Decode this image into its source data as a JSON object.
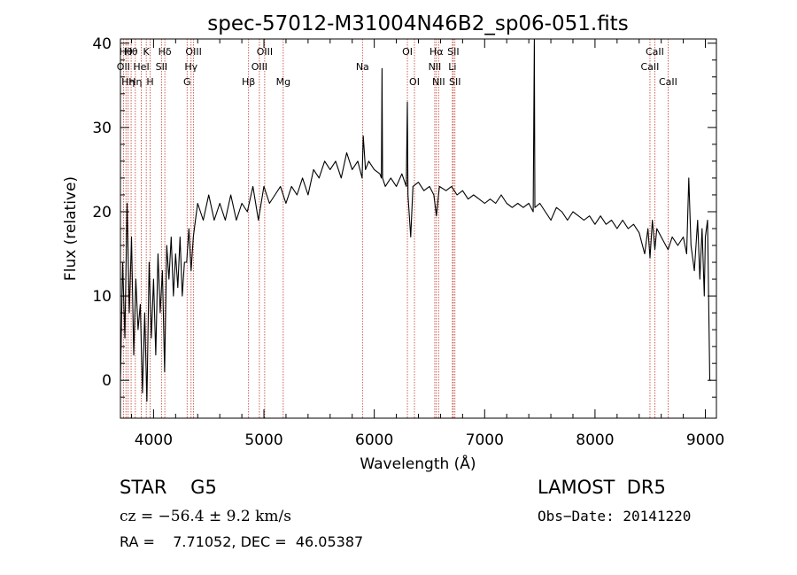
{
  "chart_data": {
    "type": "line",
    "title": "spec-57012-M31004N46B2_sp06-051.fits",
    "xlabel": "Wavelength (Å)",
    "ylabel": "Flux (relative)",
    "xlim": [
      3700,
      9100
    ],
    "ylim": [
      -4.5,
      40.5
    ],
    "xticks": [
      4000,
      5000,
      6000,
      7000,
      8000,
      9000
    ],
    "yticks": [
      0,
      10,
      20,
      30,
      40
    ],
    "grid": false,
    "series": [
      {
        "points": [
          [
            3700,
            0.0
          ],
          [
            3720,
            14.0
          ],
          [
            3740,
            5.0
          ],
          [
            3760,
            21.0
          ],
          [
            3780,
            8.0
          ],
          [
            3800,
            17.0
          ],
          [
            3820,
            3.0
          ],
          [
            3840,
            12.0
          ],
          [
            3860,
            6.0
          ],
          [
            3880,
            9.0
          ],
          [
            3900,
            -1.5
          ],
          [
            3920,
            8.0
          ],
          [
            3940,
            -2.5
          ],
          [
            3960,
            14.0
          ],
          [
            3980,
            5.0
          ],
          [
            4000,
            12.0
          ],
          [
            4020,
            3.0
          ],
          [
            4040,
            15.0
          ],
          [
            4060,
            8.0
          ],
          [
            4080,
            13.0
          ],
          [
            4100,
            1.0
          ],
          [
            4120,
            16.0
          ],
          [
            4140,
            12.0
          ],
          [
            4160,
            17.0
          ],
          [
            4180,
            10.0
          ],
          [
            4200,
            15.0
          ],
          [
            4220,
            11.0
          ],
          [
            4240,
            17.0
          ],
          [
            4260,
            10.0
          ],
          [
            4280,
            14.0
          ],
          [
            4300,
            14.0
          ],
          [
            4320,
            18.0
          ],
          [
            4340,
            13.0
          ],
          [
            4360,
            17.0
          ],
          [
            4380,
            19.0
          ],
          [
            4400,
            21.0
          ],
          [
            4450,
            19.0
          ],
          [
            4500,
            22.0
          ],
          [
            4550,
            19.0
          ],
          [
            4600,
            21.0
          ],
          [
            4650,
            19.0
          ],
          [
            4700,
            22.0
          ],
          [
            4750,
            19.0
          ],
          [
            4800,
            21.0
          ],
          [
            4850,
            20.0
          ],
          [
            4900,
            23.0
          ],
          [
            4950,
            19.0
          ],
          [
            5000,
            23.0
          ],
          [
            5050,
            21.0
          ],
          [
            5100,
            22.0
          ],
          [
            5150,
            23.0
          ],
          [
            5200,
            21.0
          ],
          [
            5250,
            23.0
          ],
          [
            5300,
            22.0
          ],
          [
            5350,
            24.0
          ],
          [
            5400,
            22.0
          ],
          [
            5450,
            25.0
          ],
          [
            5500,
            24.0
          ],
          [
            5550,
            26.0
          ],
          [
            5600,
            25.0
          ],
          [
            5650,
            26.0
          ],
          [
            5700,
            24.0
          ],
          [
            5750,
            27.0
          ],
          [
            5800,
            25.0
          ],
          [
            5850,
            26.0
          ],
          [
            5890,
            24.0
          ],
          [
            5900,
            29.0
          ],
          [
            5920,
            25.0
          ],
          [
            5950,
            26.0
          ],
          [
            6000,
            25.0
          ],
          [
            6050,
            24.5
          ],
          [
            6065,
            24.0
          ],
          [
            6070,
            37.0
          ],
          [
            6075,
            24.0
          ],
          [
            6100,
            23.0
          ],
          [
            6150,
            24.0
          ],
          [
            6200,
            23.0
          ],
          [
            6250,
            24.5
          ],
          [
            6290,
            23.0
          ],
          [
            6300,
            33.0
          ],
          [
            6305,
            22.0
          ],
          [
            6330,
            17.0
          ],
          [
            6350,
            23.0
          ],
          [
            6400,
            23.5
          ],
          [
            6450,
            22.5
          ],
          [
            6500,
            23.0
          ],
          [
            6540,
            22.0
          ],
          [
            6563,
            19.5
          ],
          [
            6590,
            23.0
          ],
          [
            6650,
            22.5
          ],
          [
            6700,
            23.0
          ],
          [
            6750,
            22.0
          ],
          [
            6800,
            22.5
          ],
          [
            6850,
            21.5
          ],
          [
            6900,
            22.0
          ],
          [
            6950,
            21.5
          ],
          [
            7000,
            21.0
          ],
          [
            7050,
            21.5
          ],
          [
            7100,
            21.0
          ],
          [
            7150,
            22.0
          ],
          [
            7200,
            21.0
          ],
          [
            7250,
            20.5
          ],
          [
            7300,
            21.0
          ],
          [
            7350,
            20.5
          ],
          [
            7400,
            21.0
          ],
          [
            7440,
            20.0
          ],
          [
            7450,
            40.5
          ],
          [
            7455,
            20.5
          ],
          [
            7500,
            21.0
          ],
          [
            7550,
            20.0
          ],
          [
            7600,
            19.0
          ],
          [
            7650,
            20.5
          ],
          [
            7700,
            20.0
          ],
          [
            7750,
            19.0
          ],
          [
            7800,
            20.0
          ],
          [
            7850,
            19.5
          ],
          [
            7900,
            19.0
          ],
          [
            7950,
            19.5
          ],
          [
            8000,
            18.5
          ],
          [
            8050,
            19.5
          ],
          [
            8100,
            18.5
          ],
          [
            8150,
            19.0
          ],
          [
            8200,
            18.0
          ],
          [
            8250,
            19.0
          ],
          [
            8300,
            18.0
          ],
          [
            8350,
            18.5
          ],
          [
            8400,
            17.5
          ],
          [
            8450,
            15.0
          ],
          [
            8480,
            18.0
          ],
          [
            8498,
            14.5
          ],
          [
            8520,
            19.0
          ],
          [
            8542,
            15.5
          ],
          [
            8560,
            18.0
          ],
          [
            8600,
            17.0
          ],
          [
            8662,
            15.5
          ],
          [
            8700,
            17.0
          ],
          [
            8750,
            16.0
          ],
          [
            8800,
            17.0
          ],
          [
            8830,
            15.0
          ],
          [
            8850,
            24.0
          ],
          [
            8870,
            16.0
          ],
          [
            8900,
            13.0
          ],
          [
            8930,
            19.0
          ],
          [
            8950,
            12.0
          ],
          [
            8970,
            18.0
          ],
          [
            8990,
            10.0
          ],
          [
            9000,
            17.0
          ],
          [
            9020,
            19.0
          ],
          [
            9040,
            0.0
          ],
          [
            9050,
            0.0
          ]
        ]
      }
    ],
    "lines": [
      {
        "wave": 3727,
        "label": "OII",
        "row": 1
      },
      {
        "wave": 3750,
        "label": "Hθ",
        "row": 0
      },
      {
        "wave": 3770,
        "label": "Hη",
        "row": 2
      },
      {
        "wave": 3797,
        "label": "Hθ",
        "row": 0
      },
      {
        "wave": 3835,
        "label": "Hη",
        "row": 2
      },
      {
        "wave": 3889,
        "label": "HeI",
        "row": 1
      },
      {
        "wave": 3934,
        "label": "K",
        "row": 0
      },
      {
        "wave": 3969,
        "label": "H",
        "row": 2
      },
      {
        "wave": 4072,
        "label": "SII",
        "row": 1
      },
      {
        "wave": 4102,
        "label": "Hδ",
        "row": 0
      },
      {
        "wave": 4304,
        "label": "G",
        "row": 2
      },
      {
        "wave": 4340,
        "label": "Hγ",
        "row": 1
      },
      {
        "wave": 4363,
        "label": "OIII",
        "row": 0
      },
      {
        "wave": 4861,
        "label": "Hβ",
        "row": 2
      },
      {
        "wave": 4959,
        "label": "OIII",
        "row": 1
      },
      {
        "wave": 5007,
        "label": "OIII",
        "row": 0
      },
      {
        "wave": 5175,
        "label": "Mg",
        "row": 2
      },
      {
        "wave": 5893,
        "label": "Na",
        "row": 1
      },
      {
        "wave": 6300,
        "label": "OI",
        "row": 0
      },
      {
        "wave": 6364,
        "label": "OI",
        "row": 2
      },
      {
        "wave": 6548,
        "label": "NII",
        "row": 1
      },
      {
        "wave": 6563,
        "label": "Hα",
        "row": 0
      },
      {
        "wave": 6583,
        "label": "NII",
        "row": 2
      },
      {
        "wave": 6708,
        "label": "Li",
        "row": 1
      },
      {
        "wave": 6716,
        "label": "SII",
        "row": 0
      },
      {
        "wave": 6731,
        "label": "SII",
        "row": 2
      },
      {
        "wave": 8498,
        "label": "CaII",
        "row": 1
      },
      {
        "wave": 8542,
        "label": "CaII",
        "row": 0
      },
      {
        "wave": 8662,
        "label": "CaII",
        "row": 2
      }
    ]
  },
  "info": {
    "star_class": "STAR    G5",
    "survey": "LAMOST  DR5",
    "cz": "cz = −56.4 ± 9.2 km/s",
    "obs_date": "Obs−Date: 20141220",
    "radec": "RA =    7.71052, DEC =  46.05387"
  }
}
